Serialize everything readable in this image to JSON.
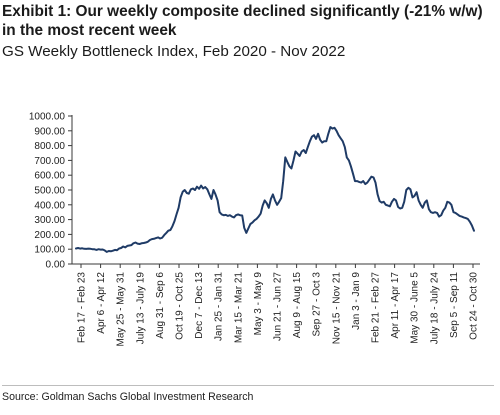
{
  "header": {
    "title": "Exhibit 1: Our weekly composite declined significantly (-21% w/w) in the most recent week",
    "subtitle": "GS Weekly Bottleneck Index, Feb 2020 - Nov 2022"
  },
  "footer": {
    "source": "Source: Goldman Sachs Global Investment Research"
  },
  "colors": {
    "line": "#1f3b66",
    "axis": "#3a3a3a"
  },
  "chart_data": {
    "type": "line",
    "title": "",
    "xlabel": "",
    "ylabel": "",
    "ylim": [
      0,
      1000
    ],
    "y_ticks": [
      0,
      100,
      200,
      300,
      400,
      500,
      600,
      700,
      800,
      900,
      1000
    ],
    "y_tick_labels": [
      "0.00",
      "100.00",
      "200.00",
      "300.00",
      "400.00",
      "500.00",
      "600.00",
      "700.00",
      "800.00",
      "900.00",
      "1000.00"
    ],
    "x_tick_labels": [
      "Feb 17 - Feb 23",
      "Apr 6 - Apr 12",
      "May 25 - May 31",
      "July 13 - July 19",
      "Aug 31 - Sep 6",
      "Oct 19 - Oct 25",
      "Dec 7 - Dec 13",
      "Jan 25 - Jan 31",
      "Mar 15 - Mar 21",
      "May 3 - May 9",
      "Jun 21 - Jun 27",
      "Aug 9 - Aug 15",
      "Sep 27 - Oct 3",
      "Nov 15 - Nov 21",
      "Jan 3 - Jan 9",
      "Feb 21 - Feb 27",
      "Apr 11 - Apr 17",
      "May 30 - June 5",
      "July 18 - July 24",
      "Sep 5 - Sep 11",
      "Oct 24 - Oct 30"
    ],
    "grid": false,
    "legend": "none",
    "series": [
      {
        "values": [
          105,
          108,
          104,
          106,
          103,
          102,
          104,
          103,
          100,
          99,
          95,
          100,
          97,
          98,
          92,
          82,
          88,
          86,
          90,
          95,
          93,
          105,
          108,
          118,
          112,
          122,
          125,
          128,
          140,
          145,
          138,
          135,
          140,
          142,
          145,
          150,
          162,
          168,
          170,
          175,
          180,
          172,
          178,
          195,
          210,
          225,
          230,
          255,
          290,
          335,
          380,
          450,
          488,
          500,
          480,
          475,
          505,
          510,
          500,
          522,
          508,
          530,
          510,
          520,
          505,
          470,
          440,
          500,
          470,
          430,
          350,
          335,
          330,
          332,
          325,
          330,
          320,
          315,
          330,
          335,
          330,
          328,
          245,
          210,
          240,
          270,
          280,
          295,
          305,
          320,
          340,
          395,
          430,
          410,
          380,
          440,
          470,
          430,
          400,
          420,
          445,
          560,
          720,
          690,
          660,
          645,
          700,
          760,
          745,
          730,
          760,
          770,
          750,
          790,
          830,
          860,
          870,
          845,
          880,
          840,
          820,
          830,
          830,
          880,
          925,
          915,
          920,
          900,
          870,
          850,
          830,
          790,
          720,
          700,
          660,
          610,
          560,
          560,
          555,
          550,
          560,
          540,
          550,
          570,
          590,
          585,
          550,
          470,
          425,
          415,
          420,
          400,
          395,
          390,
          420,
          440,
          430,
          385,
          375,
          380,
          420,
          500,
          515,
          505,
          450,
          460,
          485,
          430,
          400,
          380,
          415,
          430,
          370,
          350,
          345,
          350,
          345,
          320,
          330,
          360,
          380,
          420,
          415,
          400,
          350,
          345,
          335,
          325,
          320,
          315,
          310,
          305,
          285,
          260,
          225
        ]
      }
    ]
  }
}
